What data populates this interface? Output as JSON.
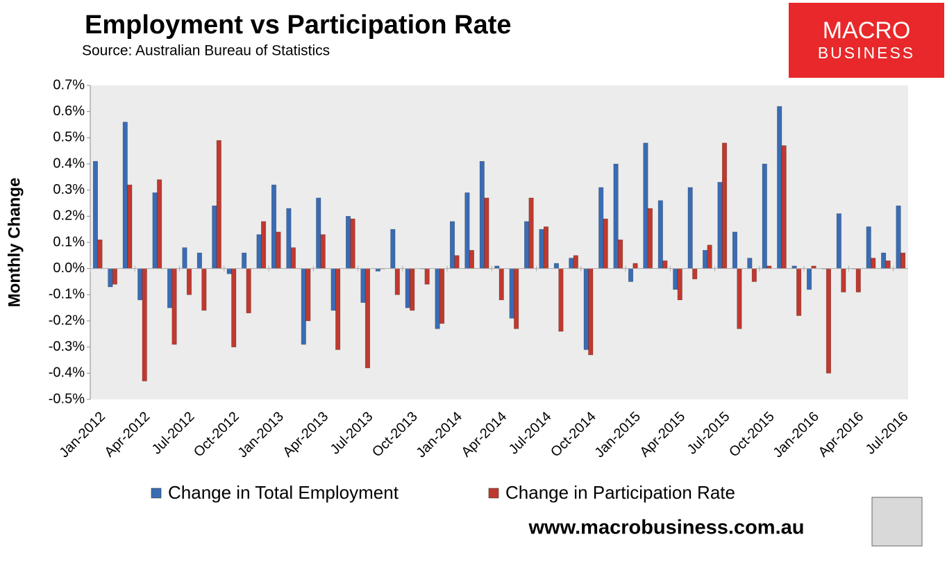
{
  "chart_data": {
    "type": "bar",
    "title": "Employment vs Participation Rate",
    "subtitle": "Source:  Australian Bureau of Statistics",
    "y_label": "Monthly Change",
    "categories": [
      "Jan-2012",
      null,
      null,
      "Apr-2012",
      null,
      null,
      "Jul-2012",
      null,
      null,
      "Oct-2012",
      null,
      null,
      "Jan-2013",
      null,
      null,
      "Apr-2013",
      null,
      null,
      "Jul-2013",
      null,
      null,
      "Oct-2013",
      null,
      null,
      "Jan-2014",
      null,
      null,
      "Apr-2014",
      null,
      null,
      "Jul-2014",
      null,
      null,
      "Oct-2014",
      null,
      null,
      "Jan-2015",
      null,
      null,
      "Apr-2015",
      null,
      null,
      "Jul-2015",
      null,
      null,
      "Oct-2015",
      null,
      null,
      "Jan-2016",
      null,
      null,
      "Apr-2016",
      null,
      null,
      "Jul-2016"
    ],
    "series": [
      {
        "name": "Change in Total Employment",
        "color": "#3a6cb4",
        "values": [
          0.41,
          -0.07,
          0.56,
          -0.12,
          0.29,
          -0.15,
          0.08,
          0.06,
          0.24,
          -0.02,
          0.06,
          0.13,
          0.32,
          0.23,
          -0.29,
          0.27,
          -0.16,
          0.2,
          -0.13,
          -0.01,
          0.15,
          -0.15,
          0.0,
          -0.23,
          0.18,
          0.29,
          0.41,
          0.01,
          -0.19,
          0.18,
          0.15,
          0.02,
          0.04,
          -0.31,
          0.31,
          0.4,
          -0.05,
          0.48,
          0.26,
          -0.08,
          0.31,
          0.07,
          0.33,
          0.14,
          0.04,
          0.4,
          0.62,
          0.01,
          -0.08,
          0.0,
          0.21,
          0.0,
          0.16,
          0.06,
          0.24
        ]
      },
      {
        "name": "Change in Participation Rate",
        "color": "#c0392f",
        "values": [
          0.11,
          -0.06,
          0.32,
          -0.43,
          0.34,
          -0.29,
          -0.1,
          -0.16,
          0.49,
          -0.3,
          -0.17,
          0.18,
          0.14,
          0.08,
          -0.2,
          0.13,
          -0.31,
          0.19,
          -0.38,
          0.0,
          -0.1,
          -0.16,
          -0.06,
          -0.21,
          0.05,
          0.07,
          0.27,
          -0.12,
          -0.23,
          0.27,
          0.16,
          -0.24,
          0.05,
          -0.33,
          0.19,
          0.11,
          0.02,
          0.23,
          0.03,
          -0.12,
          -0.04,
          0.09,
          0.48,
          -0.23,
          -0.05,
          0.01,
          0.47,
          -0.18,
          0.01,
          -0.4,
          -0.09,
          -0.09,
          0.04,
          0.03,
          0.06
        ]
      }
    ],
    "ylim": [
      -0.5,
      0.7
    ],
    "yticks": [
      {
        "value": -0.5,
        "label": "-0.5%"
      },
      {
        "value": -0.4,
        "label": "-0.4%"
      },
      {
        "value": -0.3,
        "label": "-0.3%"
      },
      {
        "value": -0.2,
        "label": "-0.2%"
      },
      {
        "value": -0.1,
        "label": "-0.1%"
      },
      {
        "value": 0,
        "label": "0.0%"
      },
      {
        "value": 0.1,
        "label": "0.1%"
      },
      {
        "value": 0.2,
        "label": "0.2%"
      },
      {
        "value": 0.3,
        "label": "0.3%"
      },
      {
        "value": 0.4,
        "label": "0.4%"
      },
      {
        "value": 0.5,
        "label": "0.5%"
      },
      {
        "value": 0.6,
        "label": "0.6%"
      },
      {
        "value": 0.7,
        "label": "0.7%"
      }
    ],
    "legend": "bottom"
  },
  "logo": {
    "line1": "MACRO",
    "line2": "BUSINESS"
  },
  "website": "www.macrobusiness.com.au"
}
